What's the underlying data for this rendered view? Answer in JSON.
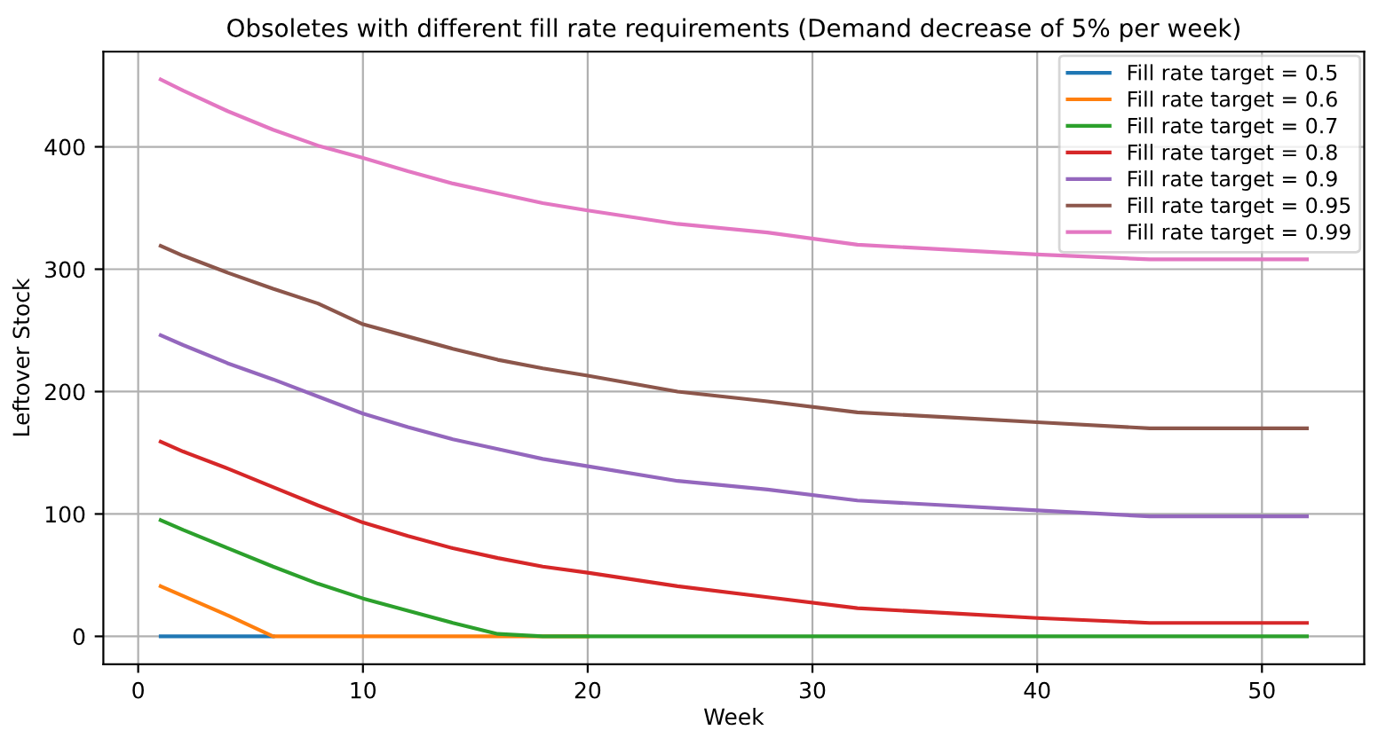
{
  "chart_data": {
    "type": "line",
    "title": "Obsoletes with different fill rate requirements (Demand decrease of 5% per week)",
    "xlabel": "Week",
    "ylabel": "Leftover Stock",
    "x": [
      1,
      2,
      4,
      6,
      8,
      10,
      12,
      14,
      16,
      18,
      20,
      24,
      28,
      32,
      36,
      40,
      45,
      52
    ],
    "series": [
      {
        "name": "Fill rate target = 0.5",
        "color": "#1f77b4",
        "values": [
          0,
          0,
          0,
          0,
          null,
          null,
          null,
          null,
          null,
          null,
          null,
          null,
          null,
          null,
          null,
          null,
          null,
          null
        ]
      },
      {
        "name": "Fill rate target = 0.6",
        "color": "#ff7f0e",
        "values": [
          41,
          33,
          17,
          0,
          0,
          0,
          0,
          0,
          0,
          0,
          0,
          null,
          null,
          null,
          null,
          null,
          null,
          null
        ]
      },
      {
        "name": "Fill rate target = 0.7",
        "color": "#2ca02c",
        "values": [
          95,
          87,
          72,
          57,
          43,
          31,
          21,
          11,
          2,
          0,
          0,
          0,
          0,
          0,
          0,
          0,
          0,
          0
        ]
      },
      {
        "name": "Fill rate target = 0.8",
        "color": "#d62728",
        "values": [
          159,
          151,
          137,
          122,
          107,
          93,
          82,
          72,
          64,
          57,
          52,
          41,
          32,
          23,
          19,
          15,
          11,
          11
        ]
      },
      {
        "name": "Fill rate target = 0.9",
        "color": "#9467bd",
        "values": [
          246,
          238,
          223,
          210,
          196,
          182,
          171,
          161,
          153,
          145,
          139,
          127,
          120,
          111,
          107,
          103,
          98,
          98
        ]
      },
      {
        "name": "Fill rate target = 0.95",
        "color": "#8c564b",
        "values": [
          319,
          311,
          297,
          284,
          272,
          255,
          245,
          235,
          226,
          219,
          213,
          200,
          192,
          183,
          179,
          175,
          170,
          170
        ]
      },
      {
        "name": "Fill rate target = 0.99",
        "color": "#e377c2",
        "values": [
          455,
          446,
          429,
          414,
          401,
          391,
          380,
          370,
          362,
          354,
          348,
          337,
          330,
          320,
          316,
          312,
          308,
          308
        ]
      }
    ],
    "xlim": [
      -1.55,
      54.55
    ],
    "xticks": [
      0,
      10,
      20,
      30,
      40,
      50
    ],
    "ylim": [
      -22.75,
      477.75
    ],
    "yticks": [
      0,
      100,
      200,
      300,
      400
    ],
    "grid": true,
    "legend": "top right"
  }
}
